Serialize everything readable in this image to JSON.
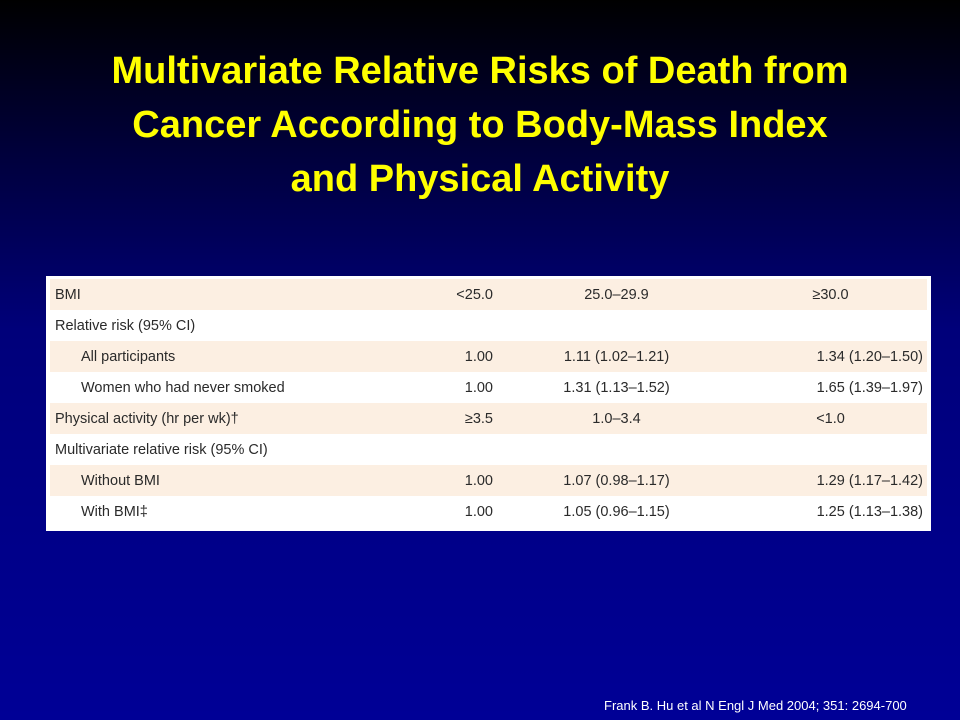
{
  "title": {
    "line1": "Multivariate Relative Risks of Death from",
    "line2": "Cancer According to Body-Mass Index",
    "line3": "and Physical Activity"
  },
  "table": {
    "header": {
      "label": "BMI",
      "col1": "<25.0",
      "col2": "25.0–29.9",
      "col3": "≥30.0"
    },
    "rows": [
      {
        "label": "Relative risk (95% CI)",
        "col1": "",
        "col2": "",
        "col3": ""
      },
      {
        "label": "All participants",
        "col1": "1.00",
        "col2": "1.11 (1.02–1.21)",
        "col3": "1.34 (1.20–1.50)"
      },
      {
        "label": "Women who had never smoked",
        "col1": "1.00",
        "col2": "1.31 (1.13–1.52)",
        "col3": "1.65 (1.39–1.97)"
      },
      {
        "label": "Physical activity (hr per wk)†",
        "col1": "≥3.5",
        "col2": "1.0–3.4",
        "col3": "<1.0"
      },
      {
        "label": "Multivariate relative risk (95% CI)",
        "col1": "",
        "col2": "",
        "col3": ""
      },
      {
        "label": "Without BMI",
        "col1": "1.00",
        "col2": "1.07 (0.98–1.17)",
        "col3": "1.29 (1.17–1.42)"
      },
      {
        "label": "With BMI‡",
        "col1": "1.00",
        "col2": "1.05 (0.96–1.15)",
        "col3": "1.25 (1.13–1.38)"
      }
    ]
  },
  "citation": "Frank B. Hu et al N Engl J Med 2004; 351: 2694-700",
  "colors": {
    "title": "#ffff00",
    "background_top": "#000000",
    "background_bottom": "#000096",
    "row_shade": "#fcefe2",
    "citation": "#ffffff"
  }
}
